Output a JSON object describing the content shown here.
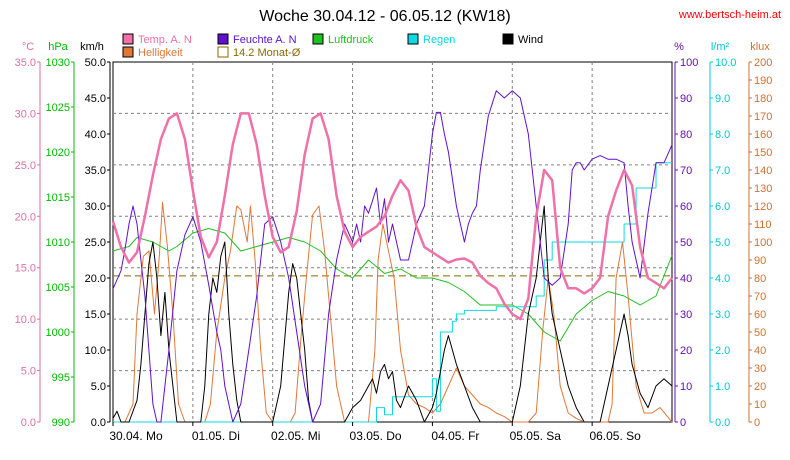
{
  "chart_data": {
    "type": "line",
    "title": "Woche 30.04.12 - 06.05.12 (KW18)",
    "source": "www.bertsch-heim.at",
    "xlim": [
      0,
      7
    ],
    "x_ticks": [
      "30.04. Mo",
      "01.05. Di",
      "02.05. Mi",
      "03.05. Do",
      "04.05. Fr",
      "05.05. Sa",
      "06.05. So"
    ],
    "grid": true,
    "legend_position": "top",
    "axes": [
      {
        "key": "temp",
        "label": "°C",
        "range": [
          0,
          35
        ],
        "step": 5,
        "decimals": 1,
        "side": "left",
        "color": "#e070a0"
      },
      {
        "key": "press",
        "label": "hPa",
        "range": [
          990,
          1030
        ],
        "step": 5,
        "decimals": 0,
        "side": "left",
        "color": "#00bb00"
      },
      {
        "key": "wind",
        "label": "km/h",
        "range": [
          0,
          50
        ],
        "step": 5,
        "decimals": 1,
        "side": "left",
        "color": "#000000"
      },
      {
        "key": "hum",
        "label": "%",
        "range": [
          0,
          100
        ],
        "step": 10,
        "decimals": 0,
        "side": "right",
        "color": "#6a0dad"
      },
      {
        "key": "rain",
        "label": "l/m²",
        "range": [
          0,
          10
        ],
        "step": 1,
        "decimals": 1,
        "side": "right",
        "color": "#00c8d0"
      },
      {
        "key": "lux",
        "label": "klux",
        "range": [
          0,
          200
        ],
        "step": 10,
        "decimals": 0,
        "side": "right",
        "color": "#d07030"
      }
    ],
    "series": [
      {
        "name": "Temp. A. N",
        "axis": "temp",
        "color": "#f070a8",
        "x": [
          0,
          0.1,
          0.2,
          0.3,
          0.4,
          0.5,
          0.6,
          0.7,
          0.8,
          0.9,
          1.0,
          1.1,
          1.2,
          1.3,
          1.4,
          1.5,
          1.6,
          1.7,
          1.8,
          1.9,
          2.0,
          2.1,
          2.2,
          2.3,
          2.4,
          2.5,
          2.6,
          2.7,
          2.8,
          2.9,
          3.0,
          3.1,
          3.2,
          3.3,
          3.4,
          3.5,
          3.6,
          3.7,
          3.8,
          3.9,
          4.0,
          4.1,
          4.2,
          4.3,
          4.4,
          4.5,
          4.6,
          4.7,
          4.8,
          4.9,
          5.0,
          5.1,
          5.2,
          5.3,
          5.4,
          5.5,
          5.6,
          5.7,
          5.8,
          5.9,
          6.0,
          6.1,
          6.2,
          6.3,
          6.4,
          6.5,
          6.6,
          6.7,
          6.8,
          6.9,
          7.0
        ],
        "values": [
          19.5,
          17.0,
          15.5,
          16.5,
          20.0,
          24.0,
          27.5,
          29.5,
          30.0,
          27.5,
          22.5,
          18.0,
          16.0,
          17.5,
          22.0,
          27.0,
          30.0,
          30.0,
          27.0,
          22.0,
          18.0,
          16.5,
          17.0,
          20.5,
          26.0,
          29.5,
          30.0,
          27.5,
          22.0,
          18.5,
          17.0,
          18.0,
          18.5,
          19.0,
          20.0,
          22.0,
          23.5,
          22.5,
          19.0,
          17.0,
          16.5,
          16.0,
          15.5,
          15.8,
          15.9,
          15.5,
          14.2,
          13.5,
          13.0,
          11.5,
          10.5,
          10.0,
          12.0,
          20.0,
          24.5,
          23.5,
          15.0,
          13.0,
          13.0,
          12.5,
          13.0,
          14.0,
          20.0,
          22.5,
          24.5,
          23.0,
          17.0,
          14.0,
          13.5,
          13.0,
          14.0
        ]
      },
      {
        "name": "Helligkeit",
        "axis": "lux",
        "color": "#e07838",
        "x": [
          0,
          0.08,
          0.15,
          0.25,
          0.3,
          0.38,
          0.45,
          0.52,
          0.58,
          0.62,
          0.68,
          0.75,
          0.82,
          0.9,
          1.0,
          1.1,
          1.15,
          1.22,
          1.3,
          1.4,
          1.47,
          1.55,
          1.6,
          1.68,
          1.72,
          1.78,
          1.85,
          1.92,
          2.0,
          2.1,
          2.22,
          2.28,
          2.35,
          2.42,
          2.5,
          2.58,
          2.65,
          2.72,
          2.8,
          2.9,
          3.0,
          3.1,
          3.2,
          3.28,
          3.32,
          3.38,
          3.45,
          3.52,
          3.6,
          3.7,
          3.8,
          3.9,
          4.0,
          4.1,
          4.2,
          4.3,
          4.4,
          4.5,
          4.6,
          4.7,
          4.8,
          4.9,
          5.0,
          5.1,
          5.2,
          5.3,
          5.38,
          5.45,
          5.52,
          5.6,
          5.7,
          5.8,
          5.9,
          6.0,
          6.1,
          6.2,
          6.25,
          6.3,
          6.38,
          6.45,
          6.55,
          6.65,
          6.75,
          6.85,
          7.0
        ],
        "values": [
          0,
          0,
          0,
          10,
          60,
          92,
          95,
          60,
          92,
          122,
          98,
          60,
          10,
          0,
          0,
          0,
          0,
          10,
          50,
          80,
          95,
          120,
          118,
          100,
          120,
          90,
          40,
          5,
          0,
          0,
          0,
          5,
          45,
          80,
          115,
          120,
          95,
          60,
          20,
          0,
          0,
          0,
          0,
          40,
          90,
          110,
          95,
          80,
          40,
          15,
          10,
          8,
          5,
          10,
          20,
          30,
          20,
          15,
          10,
          8,
          5,
          3,
          0,
          0,
          0,
          5,
          50,
          80,
          60,
          20,
          5,
          2,
          0,
          0,
          0,
          0,
          10,
          80,
          100,
          70,
          20,
          5,
          5,
          8,
          0
        ]
      },
      {
        "name": "Feuchte A. N",
        "axis": "hum",
        "color": "#6010d0",
        "x": [
          0,
          0.1,
          0.15,
          0.2,
          0.25,
          0.3,
          0.35,
          0.4,
          0.45,
          0.5,
          0.55,
          0.6,
          0.7,
          0.8,
          0.9,
          1.0,
          1.1,
          1.2,
          1.3,
          1.35,
          1.4,
          1.5,
          1.6,
          1.7,
          1.8,
          1.9,
          2.0,
          2.1,
          2.2,
          2.3,
          2.4,
          2.5,
          2.6,
          2.7,
          2.8,
          2.9,
          3.0,
          3.05,
          3.1,
          3.15,
          3.2,
          3.3,
          3.35,
          3.4,
          3.45,
          3.5,
          3.6,
          3.7,
          3.8,
          3.9,
          4.0,
          4.05,
          4.1,
          4.15,
          4.2,
          4.3,
          4.35,
          4.4,
          4.45,
          4.5,
          4.55,
          4.6,
          4.7,
          4.8,
          4.9,
          5.0,
          5.1,
          5.2,
          5.3,
          5.4,
          5.5,
          5.6,
          5.7,
          5.75,
          5.8,
          5.85,
          5.9,
          6.0,
          6.1,
          6.2,
          6.3,
          6.4,
          6.45,
          6.5,
          6.6,
          6.7,
          6.8,
          6.9,
          7.0
        ],
        "values": [
          37,
          42,
          48,
          55,
          60,
          55,
          45,
          35,
          20,
          5,
          0,
          0,
          20,
          42,
          52,
          57,
          50,
          38,
          25,
          20,
          10,
          0,
          5,
          20,
          35,
          55,
          57,
          50,
          40,
          25,
          10,
          0,
          5,
          30,
          45,
          55,
          50,
          55,
          50,
          60,
          58,
          65,
          55,
          62,
          50,
          55,
          45,
          45,
          55,
          60,
          80,
          86,
          86,
          80,
          75,
          60,
          55,
          50,
          55,
          58,
          60,
          70,
          85,
          92,
          90,
          92,
          90,
          80,
          60,
          40,
          38,
          40,
          55,
          70,
          72,
          72,
          70,
          73,
          74,
          73,
          73,
          72,
          60,
          50,
          40,
          58,
          72,
          72,
          77
        ]
      },
      {
        "name": "Luftdruck",
        "axis": "press",
        "color": "#20c020",
        "x": [
          0,
          0.2,
          0.3,
          0.5,
          0.7,
          0.8,
          1.0,
          1.2,
          1.4,
          1.6,
          1.8,
          2.0,
          2.2,
          2.4,
          2.6,
          2.8,
          3.0,
          3.2,
          3.4,
          3.6,
          3.8,
          4.0,
          4.2,
          4.4,
          4.6,
          4.8,
          5.0,
          5.2,
          5.4,
          5.6,
          5.8,
          6.0,
          6.2,
          6.4,
          6.6,
          6.8,
          7.0
        ],
        "values": [
          1009.0,
          1009.5,
          1010.5,
          1010.0,
          1009.0,
          1009.5,
          1011.0,
          1011.5,
          1011.0,
          1009.0,
          1009.5,
          1010.0,
          1010.5,
          1010.0,
          1009.0,
          1007.0,
          1006.0,
          1008.0,
          1006.5,
          1007.0,
          1006.0,
          1006.0,
          1005.5,
          1004.5,
          1003.0,
          1003.0,
          1003.0,
          1002.0,
          1000.0,
          999.0,
          1002.0,
          1003.5,
          1004.5,
          1004.0,
          1003.0,
          1004.0,
          1008.5
        ]
      },
      {
        "name": "Regen",
        "axis": "rain",
        "color": "#10d8e0",
        "x": [
          0,
          3.3,
          3.3,
          3.4,
          3.4,
          3.5,
          3.5,
          4.0,
          4.0,
          4.05,
          4.05,
          4.1,
          4.1,
          4.25,
          4.25,
          4.3,
          4.3,
          4.4,
          4.4,
          4.8,
          4.8,
          5.3,
          5.3,
          5.4,
          5.4,
          5.5,
          5.5,
          6.4,
          6.4,
          6.55,
          6.55,
          6.8,
          6.8,
          7.0
        ],
        "values": [
          0,
          0,
          0.4,
          0.4,
          0.2,
          0.2,
          0.7,
          0.7,
          1.2,
          1.2,
          0.3,
          0.3,
          2.5,
          2.5,
          2.8,
          2.8,
          3.0,
          3.0,
          3.1,
          3.1,
          3.2,
          3.2,
          3.5,
          3.5,
          4.5,
          4.5,
          5.0,
          5.0,
          5.5,
          5.5,
          6.5,
          6.5,
          7.2,
          7.2
        ]
      },
      {
        "name": "Wind",
        "axis": "wind",
        "color": "#000000",
        "x": [
          0,
          0.05,
          0.1,
          0.2,
          0.3,
          0.35,
          0.4,
          0.45,
          0.5,
          0.55,
          0.6,
          0.65,
          0.7,
          0.75,
          0.8,
          0.9,
          1.0,
          1.1,
          1.15,
          1.2,
          1.25,
          1.3,
          1.35,
          1.4,
          1.45,
          1.5,
          1.55,
          1.6,
          1.7,
          1.8,
          1.9,
          2.0,
          2.1,
          2.2,
          2.25,
          2.3,
          2.35,
          2.4,
          2.45,
          2.5,
          2.6,
          2.7,
          2.8,
          2.9,
          3.0,
          3.1,
          3.2,
          3.25,
          3.3,
          3.35,
          3.4,
          3.45,
          3.5,
          3.55,
          3.6,
          3.7,
          3.8,
          3.9,
          4.0,
          4.05,
          4.1,
          4.15,
          4.2,
          4.25,
          4.3,
          4.4,
          4.5,
          4.6,
          4.7,
          4.8,
          4.9,
          5.0,
          5.1,
          5.2,
          5.3,
          5.35,
          5.4,
          5.45,
          5.5,
          5.6,
          5.7,
          5.8,
          5.9,
          6.0,
          6.1,
          6.2,
          6.3,
          6.4,
          6.45,
          6.5,
          6.6,
          6.7,
          6.8,
          6.9,
          7.0
        ],
        "values": [
          0.5,
          1.5,
          0,
          0,
          3,
          8,
          15,
          22,
          25,
          20,
          12,
          18,
          10,
          5,
          0,
          0,
          0,
          0,
          5,
          15,
          20,
          18,
          23,
          25,
          15,
          8,
          3,
          0,
          0,
          0,
          0,
          0,
          5,
          18,
          22,
          20,
          15,
          10,
          3,
          0,
          0,
          0,
          0,
          0,
          2,
          3,
          5,
          6,
          4,
          7,
          8,
          6,
          7,
          3,
          2,
          5,
          3,
          0,
          2,
          4,
          7,
          10,
          12,
          10,
          8,
          5,
          2,
          0,
          0,
          0,
          0,
          0,
          5,
          15,
          20,
          25,
          30,
          20,
          15,
          10,
          5,
          2,
          0,
          0,
          0,
          5,
          10,
          15,
          12,
          8,
          4,
          2,
          5,
          6,
          5
        ]
      },
      {
        "name": "14.2 Monat-Ø",
        "axis": "temp",
        "color": "#8a6a00",
        "dashed": true,
        "x": [
          0,
          7
        ],
        "values": [
          14.2,
          14.2
        ]
      }
    ]
  }
}
